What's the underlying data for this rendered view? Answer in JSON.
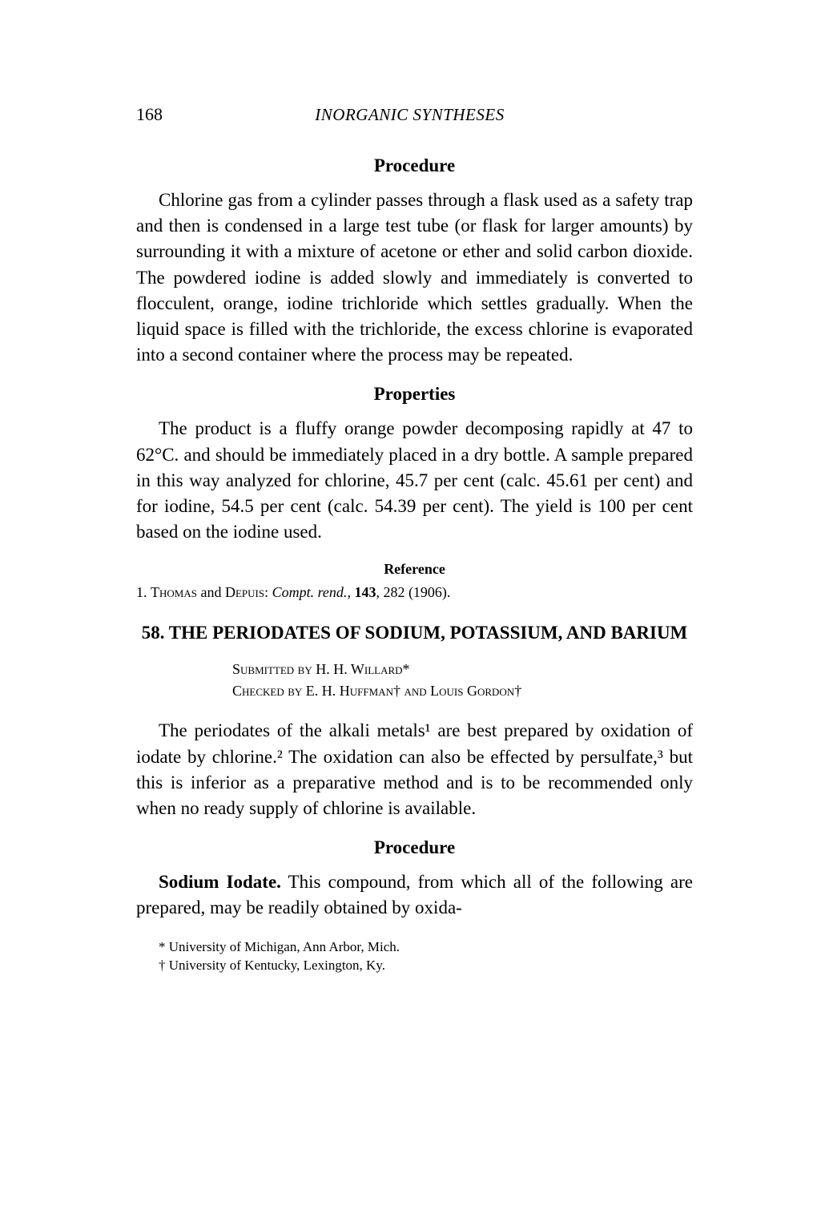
{
  "header": {
    "page_number": "168",
    "running_title": "INORGANIC SYNTHESES"
  },
  "sections": {
    "procedure1": {
      "heading": "Procedure",
      "body": "Chlorine gas from a cylinder passes through a flask used as a safety trap and then is condensed in a large test tube (or flask for larger amounts) by surrounding it with a mixture of acetone or ether and solid carbon dioxide. The powdered iodine is added slowly and immediately is converted to flocculent, orange, iodine trichloride which settles gradually. When the liquid space is filled with the trichloride, the excess chlorine is evaporated into a second container where the process may be repeated."
    },
    "properties": {
      "heading": "Properties",
      "body": "The product is a fluffy orange powder decomposing rapidly at 47 to 62°C. and should be immediately placed in a dry bottle. A sample prepared in this way analyzed for chlorine, 45.7 per cent (calc. 45.61 per cent) and for iodine, 54.5 per cent (calc. 54.39 per cent). The yield is 100 per cent based on the iodine used."
    },
    "reference": {
      "heading": "Reference",
      "item_prefix": "1. ",
      "authors": "Thomas",
      "and": " and ",
      "authors2": "Depuis",
      "journal": "Compt. rend.",
      "volume": "143",
      "pages": "282",
      "year": "(1906)."
    },
    "article": {
      "number": "58.",
      "title": "THE PERIODATES OF SODIUM, POTASSIUM, AND BARIUM",
      "submitted_label": "Submitted by",
      "submitted_name": "H. H. Willard*",
      "checked_label": "Checked by",
      "checked_names": "E. H. Huffman† and Louis Gordon†",
      "intro": "The periodates of the alkali metals¹ are best prepared by oxidation of iodate by chlorine.² The oxidation can also be effected by persulfate,³ but this is inferior as a preparative method and is to be recommended only when no ready supply of chlorine is available."
    },
    "procedure2": {
      "heading": "Procedure",
      "compound": "Sodium Iodate.",
      "body": " This compound, from which all of the following are prepared, may be readily obtained by oxida-"
    },
    "footnotes": {
      "fn1": "* University of Michigan, Ann Arbor, Mich.",
      "fn2": "† University of Kentucky, Lexington, Ky."
    }
  },
  "style": {
    "background_color": "#ffffff",
    "text_color": "#000000",
    "body_fontsize": 23,
    "heading_fontsize": 23,
    "ref_fontsize": 18,
    "footnote_fontsize": 17
  }
}
